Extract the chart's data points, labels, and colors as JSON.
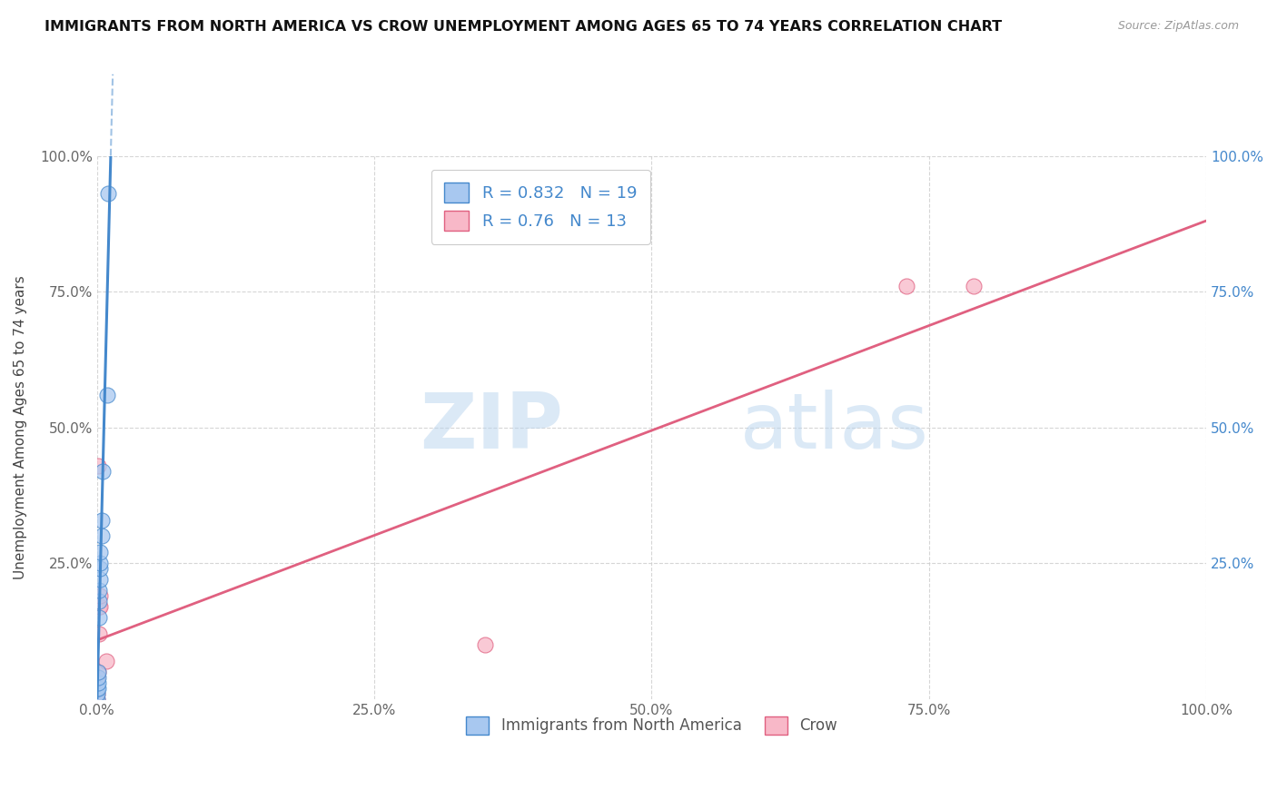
{
  "title": "IMMIGRANTS FROM NORTH AMERICA VS CROW UNEMPLOYMENT AMONG AGES 65 TO 74 YEARS CORRELATION CHART",
  "source": "Source: ZipAtlas.com",
  "ylabel": "Unemployment Among Ages 65 to 74 years",
  "legend_bottom": [
    "Immigrants from North America",
    "Crow"
  ],
  "R_blue": 0.832,
  "N_blue": 19,
  "R_pink": 0.76,
  "N_pink": 13,
  "blue_scatter_x": [
    0.0,
    0.0,
    0.0,
    0.001,
    0.001,
    0.001,
    0.001,
    0.002,
    0.002,
    0.002,
    0.003,
    0.003,
    0.003,
    0.003,
    0.004,
    0.004,
    0.005,
    0.009,
    0.01
  ],
  "blue_scatter_y": [
    0.0,
    0.01,
    0.02,
    0.02,
    0.03,
    0.04,
    0.05,
    0.15,
    0.18,
    0.2,
    0.22,
    0.24,
    0.25,
    0.27,
    0.3,
    0.33,
    0.42,
    0.56,
    0.93
  ],
  "pink_scatter_x": [
    0.0,
    0.0,
    0.0,
    0.001,
    0.001,
    0.002,
    0.002,
    0.003,
    0.003,
    0.008,
    0.73,
    0.79,
    0.35
  ],
  "pink_scatter_y": [
    0.0,
    0.01,
    0.04,
    0.05,
    0.43,
    0.12,
    0.17,
    0.17,
    0.19,
    0.07,
    0.76,
    0.76,
    0.1
  ],
  "blue_color": "#A8C8F0",
  "pink_color": "#F8B8C8",
  "blue_line_color": "#4488CC",
  "pink_line_color": "#E06080",
  "grid_color": "#CCCCCC",
  "background_color": "#FFFFFF",
  "watermark_zip": "ZIP",
  "watermark_atlas": "atlas",
  "xlim": [
    0.0,
    1.0
  ],
  "ylim": [
    0.0,
    1.0
  ],
  "xticks": [
    0.0,
    0.25,
    0.5,
    0.75,
    1.0
  ],
  "xtick_labels": [
    "0.0%",
    "25.0%",
    "50.0%",
    "75.0%",
    "100.0%"
  ],
  "yticks": [
    0.25,
    0.5,
    0.75,
    1.0
  ],
  "ytick_labels": [
    "25.0%",
    "50.0%",
    "75.0%",
    "100.0%"
  ],
  "right_ytick_labels": [
    "25.0%",
    "50.0%",
    "75.0%",
    "100.0%"
  ]
}
